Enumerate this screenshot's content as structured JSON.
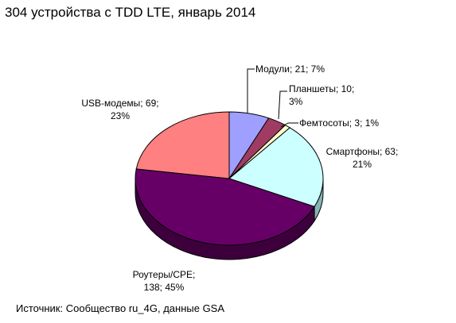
{
  "chart_data": {
    "type": "pie",
    "title": "304 устройства с TDD LTE, январь 2014",
    "source": "Источник: Сообщество ru_4G, данные GSA",
    "slices": [
      {
        "category": "Модули",
        "value": 21,
        "percent": "7%",
        "label_lines": [
          "Модули; 21; 7%"
        ],
        "color": "#9f9fff",
        "side": "#6a6aba"
      },
      {
        "category": "Планшеты",
        "value": 10,
        "percent": "3%",
        "label_lines": [
          "Планшеты; 10;",
          "3%"
        ],
        "color": "#a03c64",
        "side": "#6c2742"
      },
      {
        "category": "Фемтосоты",
        "value": 3,
        "percent": "1%",
        "label_lines": [
          "Фемтосоты; 3; 1%"
        ],
        "color": "#ffffcc",
        "side": "#b8b890"
      },
      {
        "category": "Смартфоны",
        "value": 63,
        "percent": "21%",
        "label_lines": [
          "Смартфоны; 63;",
          "21%"
        ],
        "color": "#ccffff",
        "side": "#86b4b4"
      },
      {
        "category": "Роутеры/CPE",
        "value": 138,
        "percent": "45%",
        "label_lines": [
          "Роутеры/CPE;",
          "138; 45%"
        ],
        "color": "#660066",
        "side": "#3d003d"
      },
      {
        "category": "USB-модемы",
        "value": 69,
        "percent": "23%",
        "label_lines": [
          "USB-модемы; 69;",
          "23%"
        ],
        "color": "#ff8080",
        "side": "#b45a5a"
      }
    ]
  }
}
